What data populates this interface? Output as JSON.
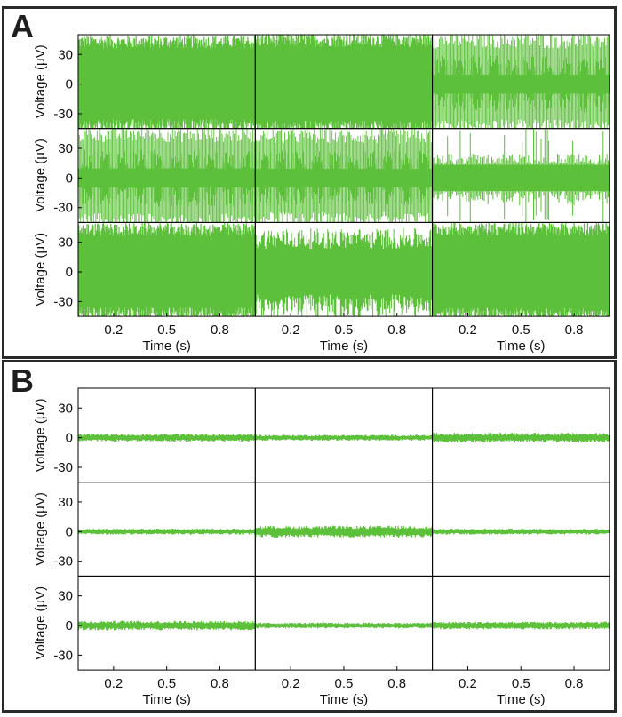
{
  "colors": {
    "trace": "#5cc03a",
    "frame": "#000000"
  },
  "chart_data": [
    {
      "panel": "A",
      "type": "line",
      "grid": false,
      "xlabel": "Time (s)",
      "ylabel": "Voltage (μV)",
      "xticks": [
        0.2,
        0.5,
        0.8
      ],
      "xlim": [
        0,
        1
      ],
      "yticks": [
        30,
        0,
        -30
      ],
      "ylim": [
        -45,
        50
      ],
      "layout": "3x3",
      "subplots": [
        {
          "row": 0,
          "col": 0,
          "style": "dense",
          "amplitude": 46
        },
        {
          "row": 0,
          "col": 1,
          "style": "dense",
          "amplitude": 48
        },
        {
          "row": 0,
          "col": 2,
          "style": "bursting",
          "amplitude": 48
        },
        {
          "row": 1,
          "col": 0,
          "style": "bursting",
          "amplitude": 48
        },
        {
          "row": 1,
          "col": 1,
          "style": "bursting",
          "amplitude": 46
        },
        {
          "row": 1,
          "col": 2,
          "style": "sparse",
          "amplitude": 38
        },
        {
          "row": 2,
          "col": 0,
          "style": "dense",
          "amplitude": 46
        },
        {
          "row": 2,
          "col": 1,
          "style": "variable",
          "amplitude": 42
        },
        {
          "row": 2,
          "col": 2,
          "style": "dense",
          "amplitude": 47
        }
      ]
    },
    {
      "panel": "B",
      "type": "line",
      "grid": false,
      "xlabel": "Time (s)",
      "ylabel": "Voltage (μV)",
      "xticks": [
        0.2,
        0.5,
        0.8
      ],
      "xlim": [
        0,
        1
      ],
      "yticks": [
        30,
        0,
        -30
      ],
      "ylim": [
        -45,
        50
      ],
      "layout": "3x3",
      "subplots": [
        {
          "row": 0,
          "col": 0,
          "style": "noise",
          "amplitude": 4
        },
        {
          "row": 0,
          "col": 1,
          "style": "noise",
          "amplitude": 3
        },
        {
          "row": 0,
          "col": 2,
          "style": "noise",
          "amplitude": 5
        },
        {
          "row": 1,
          "col": 0,
          "style": "noise",
          "amplitude": 3
        },
        {
          "row": 1,
          "col": 1,
          "style": "noise",
          "amplitude": 6
        },
        {
          "row": 1,
          "col": 2,
          "style": "noise",
          "amplitude": 3
        },
        {
          "row": 2,
          "col": 0,
          "style": "noise",
          "amplitude": 5
        },
        {
          "row": 2,
          "col": 1,
          "style": "noise",
          "amplitude": 3
        },
        {
          "row": 2,
          "col": 2,
          "style": "noise",
          "amplitude": 4
        }
      ]
    }
  ]
}
